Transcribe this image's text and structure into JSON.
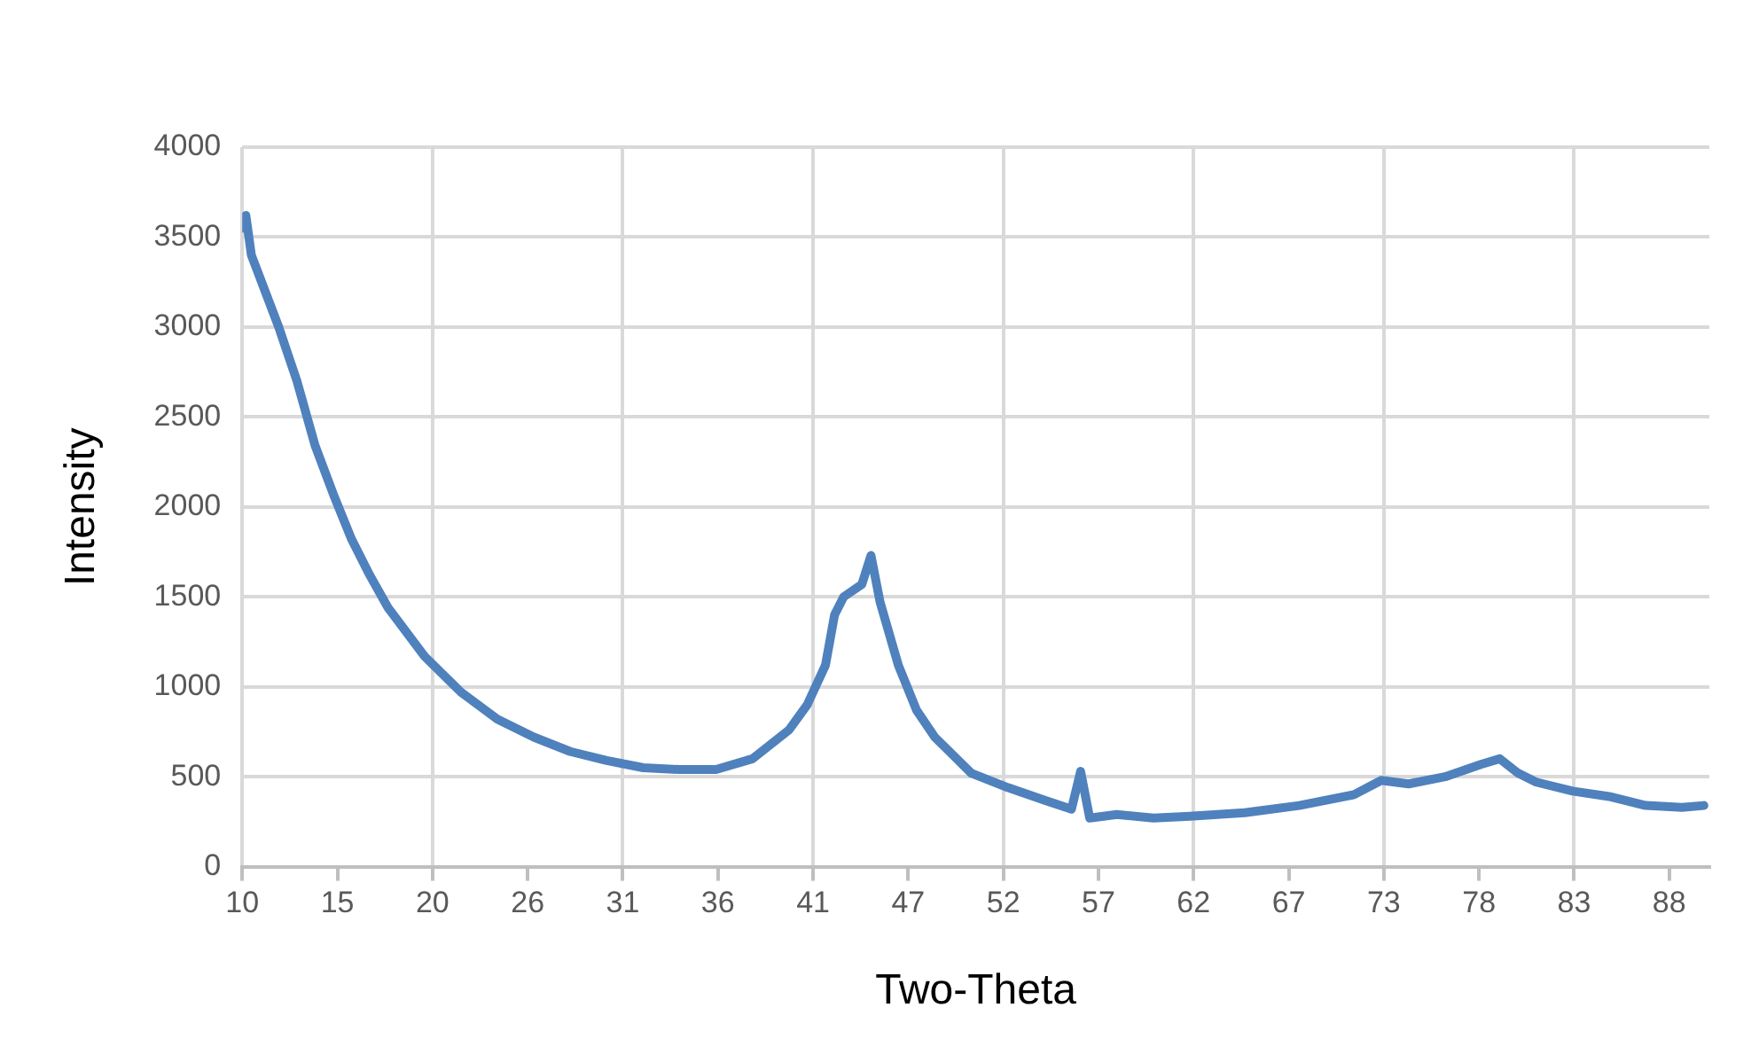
{
  "chart_data": {
    "type": "line",
    "xlabel": "Two-Theta",
    "ylabel": "Intensity",
    "x": [
      10,
      10.2,
      10.5,
      12,
      13,
      14,
      15,
      16,
      17,
      18,
      20,
      22,
      24,
      26,
      28,
      30,
      32,
      34,
      36,
      38,
      40,
      41,
      42,
      42.5,
      43,
      44,
      44.5,
      45,
      46,
      47,
      48,
      49,
      50,
      52,
      54,
      55.5,
      56,
      56.5,
      58,
      60,
      62,
      65,
      68,
      71,
      72.5,
      74,
      76,
      78,
      79,
      80,
      81,
      83,
      85,
      87,
      89,
      90.2
    ],
    "series": [
      {
        "color": "#4f81bd",
        "values": [
          3550,
          3620,
          3400,
          3000,
          2700,
          2340,
          2070,
          1820,
          1620,
          1440,
          1170,
          970,
          820,
          720,
          640,
          590,
          550,
          540,
          540,
          600,
          760,
          900,
          1120,
          1400,
          1500,
          1570,
          1730,
          1470,
          1120,
          870,
          720,
          620,
          520,
          440,
          370,
          320,
          530,
          270,
          290,
          270,
          280,
          300,
          340,
          400,
          480,
          460,
          500,
          570,
          600,
          520,
          470,
          420,
          390,
          340,
          330,
          340
        ]
      }
    ],
    "xlim": [
      10,
      90.5
    ],
    "xticks": [
      10,
      {
        "value": 15.22,
        "label": "15"
      },
      {
        "value": 20.44,
        "label": "20"
      },
      {
        "value": 25.66,
        "label": "26"
      },
      {
        "value": 30.88,
        "label": "31"
      },
      {
        "value": 36.1,
        "label": "36"
      },
      {
        "value": 41.32,
        "label": "41"
      },
      {
        "value": 46.54,
        "label": "47"
      },
      {
        "value": 51.76,
        "label": "52"
      },
      {
        "value": 56.98,
        "label": "57"
      },
      {
        "value": 62.2,
        "label": "62"
      },
      {
        "value": 67.42,
        "label": "67"
      },
      {
        "value": 72.64,
        "label": "73"
      },
      {
        "value": 77.86,
        "label": "78"
      },
      {
        "value": 83.08,
        "label": "83"
      },
      {
        "value": 88.3,
        "label": "88"
      }
    ],
    "ylim": [
      0,
      4000
    ],
    "yticks": [
      0,
      500,
      1000,
      1500,
      2000,
      2500,
      3000,
      3500,
      4000
    ],
    "grid": true,
    "legend": false,
    "marker": "none",
    "line_style": "solid"
  }
}
